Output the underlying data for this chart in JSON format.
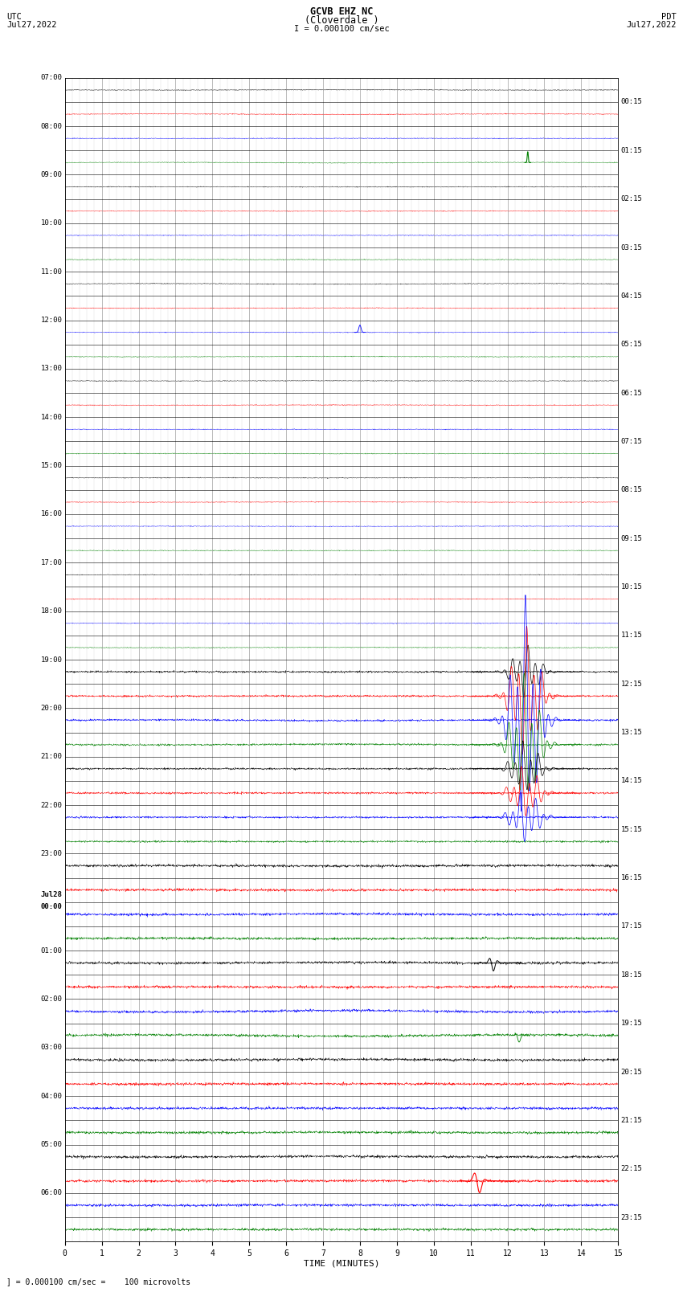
{
  "title_line1": "GCVB EHZ NC",
  "title_line2": "(Cloverdale )",
  "scale_label": "I = 0.000100 cm/sec",
  "xlabel": "TIME (MINUTES)",
  "footer_note": "] = 0.000100 cm/sec =    100 microvolts",
  "bg_color": "#ffffff",
  "trace_colors": [
    "#000000",
    "#ff0000",
    "#0000ff",
    "#008000"
  ],
  "n_rows": 48,
  "minutes": 15,
  "noise_base": 0.012,
  "left_times": [
    "07:00",
    "08:00",
    "09:00",
    "10:00",
    "11:00",
    "12:00",
    "13:00",
    "14:00",
    "15:00",
    "16:00",
    "17:00",
    "18:00",
    "19:00",
    "20:00",
    "21:00",
    "22:00",
    "23:00",
    "Jul28\n00:00",
    "01:00",
    "02:00",
    "03:00",
    "04:00",
    "05:00",
    "06:00"
  ],
  "right_times": [
    "00:15",
    "01:15",
    "02:15",
    "03:15",
    "04:15",
    "05:15",
    "06:15",
    "07:15",
    "08:15",
    "09:15",
    "10:15",
    "11:15",
    "12:15",
    "13:15",
    "14:15",
    "15:15",
    "16:15",
    "17:15",
    "18:15",
    "19:15",
    "20:15",
    "21:15",
    "22:15",
    "23:15"
  ],
  "noise_amplitudes": {
    "early_rows": 0.008,
    "mid_rows": 0.018,
    "late_rows": 0.025
  },
  "row_transition1": 24,
  "row_transition2": 32
}
